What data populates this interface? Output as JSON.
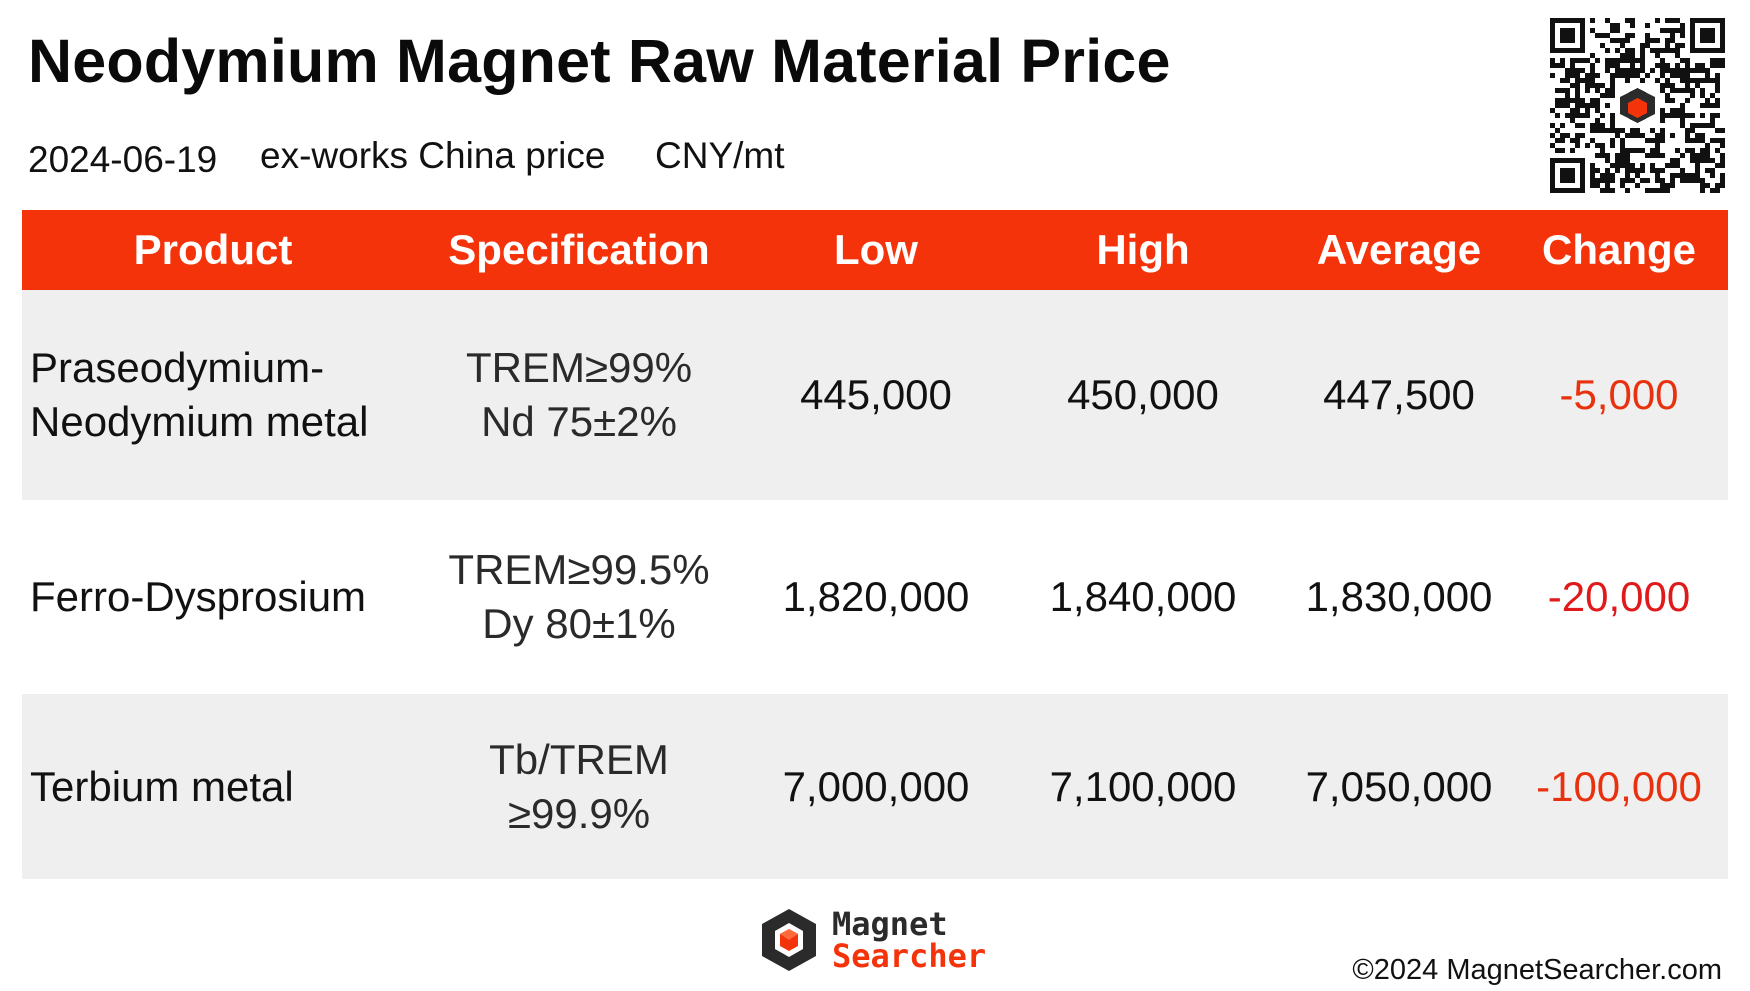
{
  "header": {
    "title": "Neodymium Magnet Raw Material Price",
    "date": "2024-06-19",
    "price_basis": "ex-works China price",
    "unit": "CNY/mt"
  },
  "table": {
    "columns": [
      "Product",
      "Specification",
      "Low",
      "High",
      "Average",
      "Change"
    ],
    "rows": [
      {
        "product_line1": "Praseodymium-",
        "product_line2": "Neodymium metal",
        "spec_line1": "TREM≥99%",
        "spec_line2": "Nd 75±2%",
        "low": "445,000",
        "high": "450,000",
        "average": "447,500",
        "change": "-5,000"
      },
      {
        "product_line1": "Ferro-Dysprosium",
        "spec_line1": "TREM≥99.5%",
        "spec_line2": "Dy 80±1%",
        "low": "1,820,000",
        "high": "1,840,000",
        "average": "1,830,000",
        "change": "-20,000"
      },
      {
        "product_line1": "Terbium metal",
        "spec_line1": "Tb/TREM",
        "spec_line2": "≥99.9%",
        "low": "7,000,000",
        "high": "7,100,000",
        "average": "7,050,000",
        "change": "-100,000"
      }
    ]
  },
  "footer": {
    "logo_line1": "Magnet",
    "logo_line2": "Searcher",
    "copyright": "©2024 MagnetSearcher.com"
  },
  "colors": {
    "header_bg": "#f5330a",
    "row_shade": "#efefef",
    "negative_change": "#e8320f"
  },
  "icons": {
    "qr": "qr-code-icon",
    "logo": "magnet-searcher-logo-icon"
  }
}
